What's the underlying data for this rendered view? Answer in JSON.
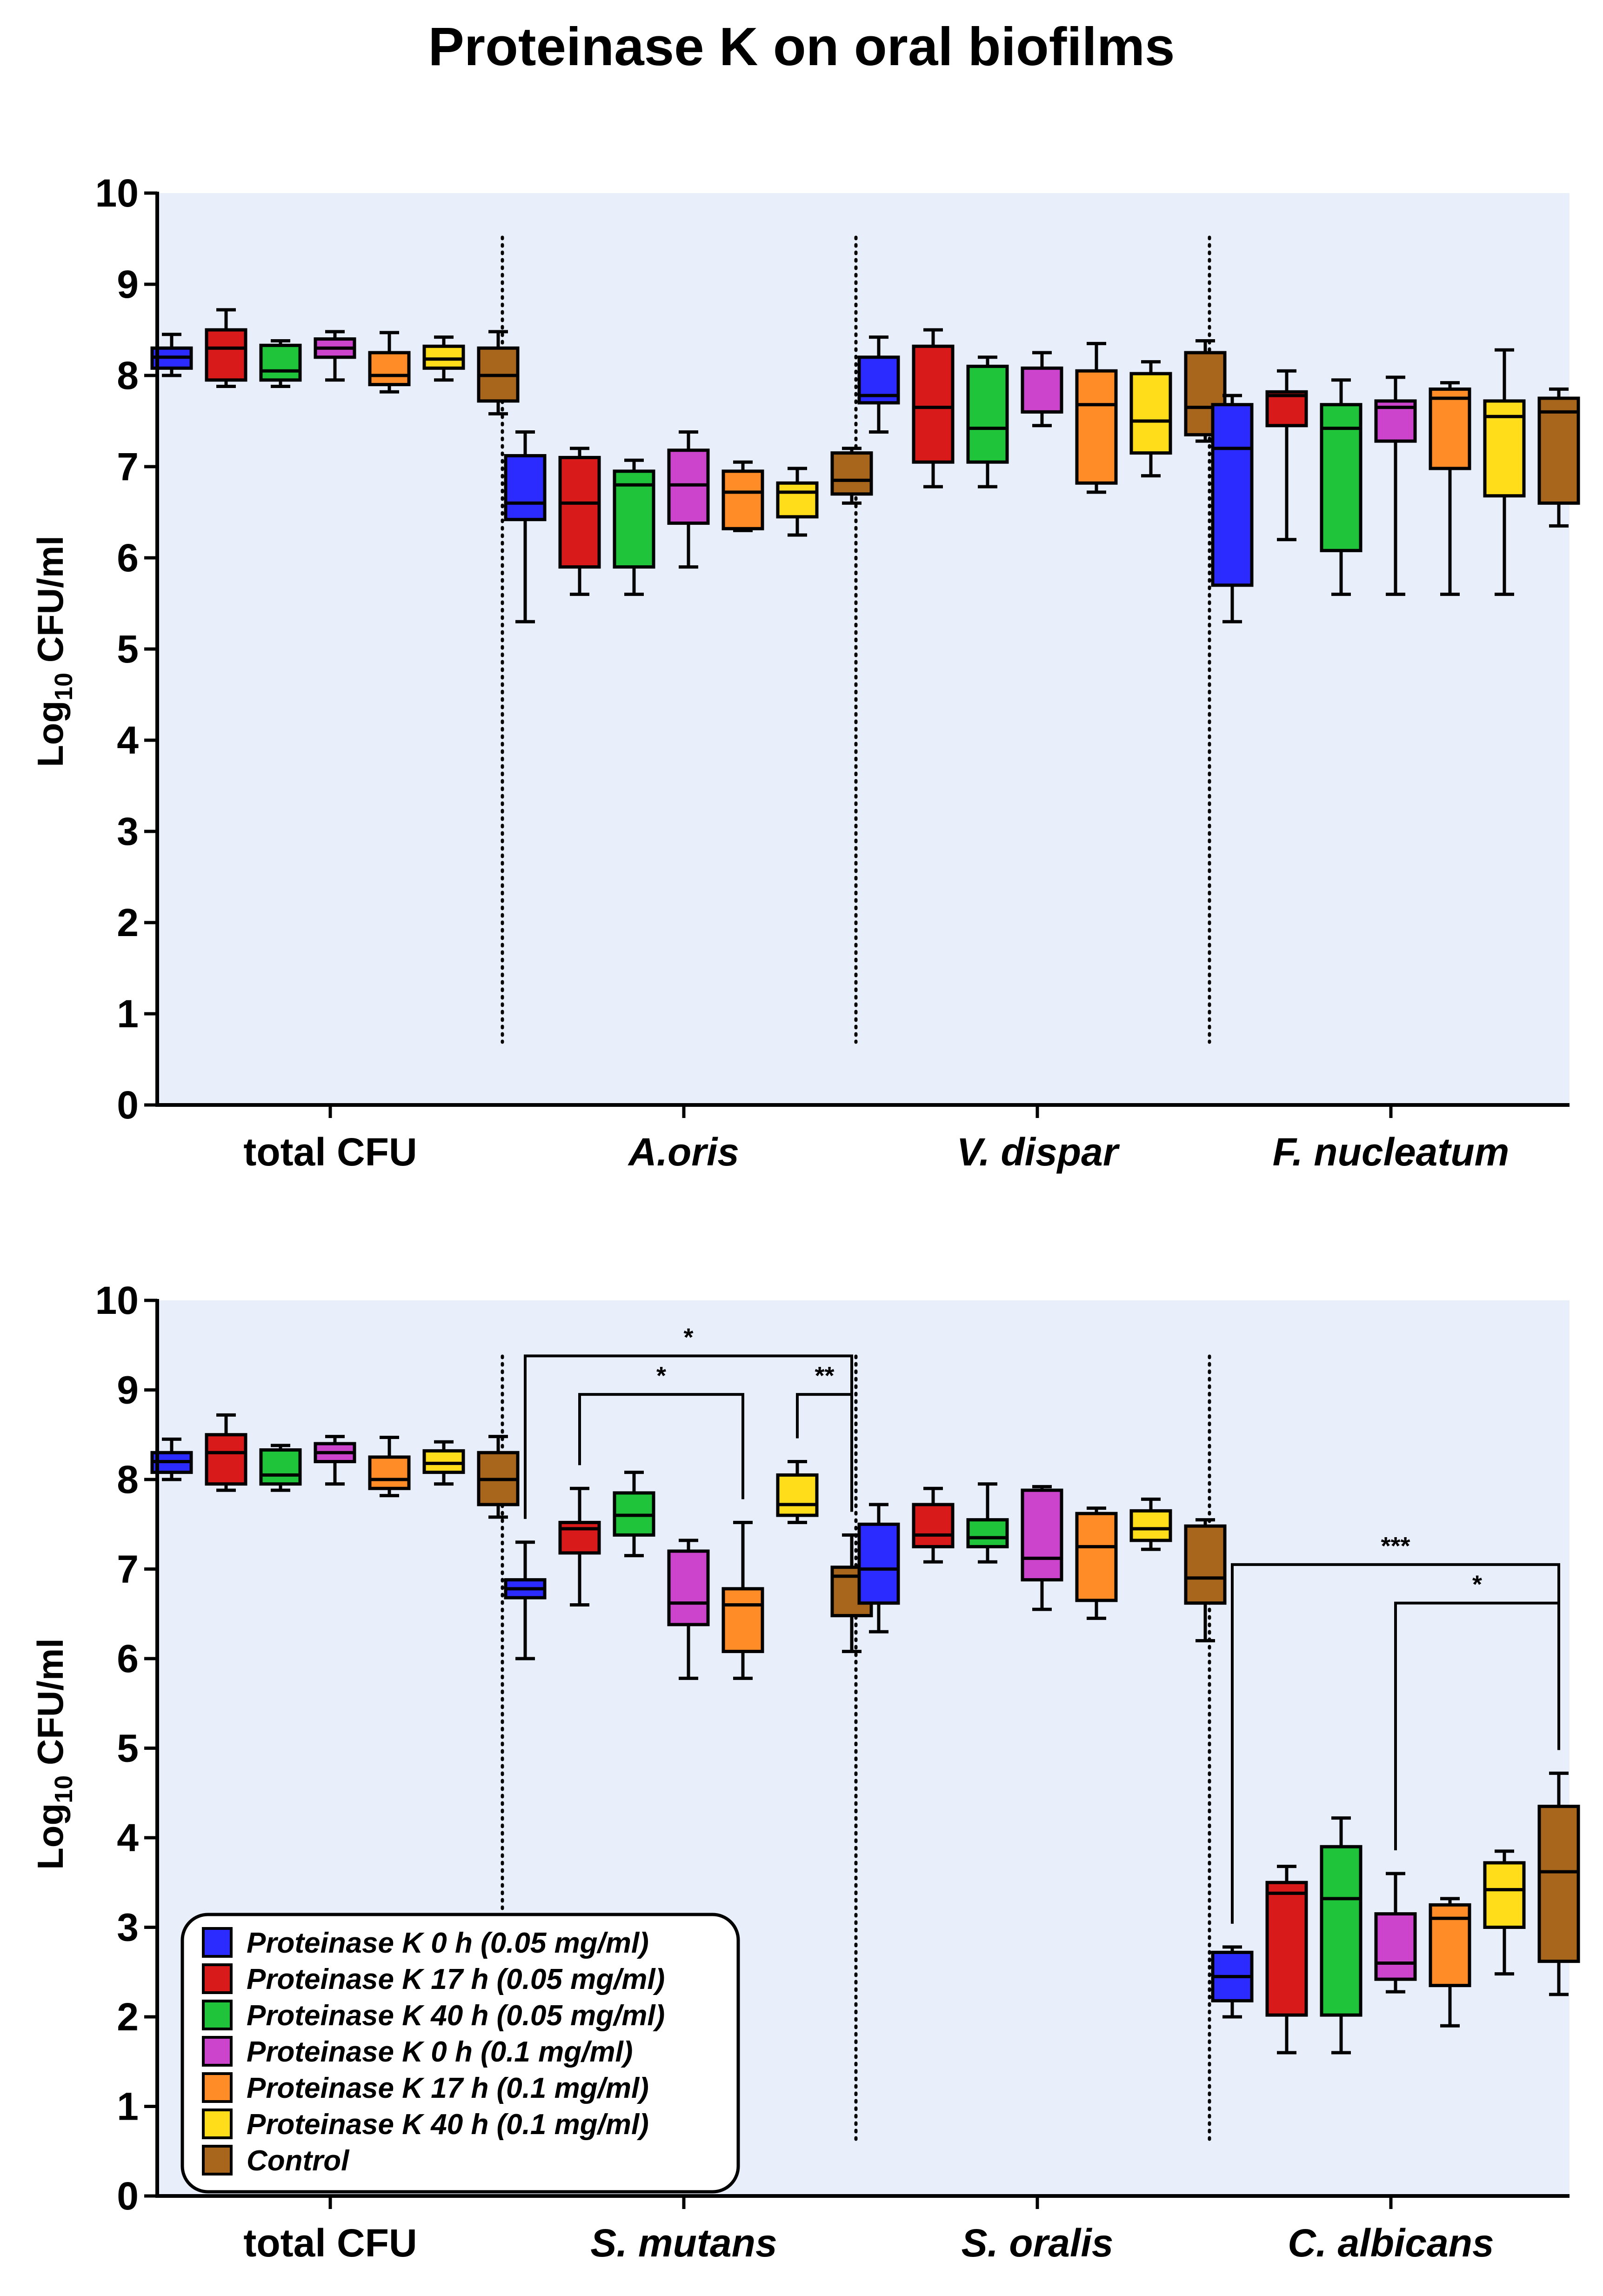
{
  "figure": {
    "title": "Proteinase K on oral biofilms"
  },
  "series": [
    {
      "name": "Proteinase K 0 h (0.05 mg/ml)",
      "color": "#2b2bff",
      "italic": true
    },
    {
      "name": "Proteinase K 17 h (0.05 mg/ml)",
      "color": "#d91a1a",
      "italic": true
    },
    {
      "name": "Proteinase K 40 h (0.05 mg/ml)",
      "color": "#1fc43a",
      "italic": true
    },
    {
      "name": "Proteinase K 0 h (0.1 mg/ml)",
      "color": "#cc44cc",
      "italic": true
    },
    {
      "name": "Proteinase K 17 h (0.1 mg/ml)",
      "color": "#ff8c26",
      "italic": true
    },
    {
      "name": "Proteinase K 40 h (0.1 mg/ml)",
      "color": "#ffdd1a",
      "italic": true
    },
    {
      "name": "Control",
      "color": "#a8661c",
      "italic": false
    }
  ],
  "chart_data": [
    {
      "type": "box",
      "ylabel_main": "Log",
      "ylabel_sub": "10",
      "ylabel_rest": " CFU/ml",
      "ylim": [
        0,
        10
      ],
      "yticks": [
        "0",
        "1",
        "2",
        "3",
        "4",
        "5",
        "6",
        "7",
        "8",
        "9",
        "10"
      ],
      "categories": [
        {
          "label": "total CFU",
          "italic": false
        },
        {
          "label": "A.oris",
          "italic": true
        },
        {
          "label": "V. dispar",
          "italic": true
        },
        {
          "label": "F. nucleatum",
          "italic": true
        }
      ],
      "boxes": [
        [
          [
            8.0,
            8.08,
            8.2,
            8.3,
            8.45
          ],
          [
            7.88,
            7.95,
            8.3,
            8.5,
            8.72
          ],
          [
            7.88,
            7.95,
            8.05,
            8.33,
            8.38
          ],
          [
            7.95,
            8.2,
            8.3,
            8.4,
            8.48
          ],
          [
            7.82,
            7.9,
            8.0,
            8.25,
            8.47
          ],
          [
            7.95,
            8.08,
            8.18,
            8.32,
            8.42
          ],
          [
            7.58,
            7.72,
            8.0,
            8.3,
            8.48
          ]
        ],
        [
          [
            5.3,
            6.42,
            6.6,
            7.12,
            7.38
          ],
          [
            5.6,
            5.9,
            6.6,
            7.1,
            7.2
          ],
          [
            5.6,
            5.9,
            6.8,
            6.95,
            7.07
          ],
          [
            5.9,
            6.38,
            6.8,
            7.18,
            7.38
          ],
          [
            6.3,
            6.32,
            6.72,
            6.95,
            7.05
          ],
          [
            6.25,
            6.45,
            6.72,
            6.82,
            6.98
          ],
          [
            6.6,
            6.7,
            6.85,
            7.15,
            7.2
          ]
        ],
        [
          [
            7.38,
            7.7,
            7.78,
            8.2,
            8.42
          ],
          [
            6.78,
            7.05,
            7.65,
            8.32,
            8.5
          ],
          [
            6.78,
            7.05,
            7.42,
            8.1,
            8.2
          ],
          [
            7.45,
            7.6,
            7.6,
            8.08,
            8.25
          ],
          [
            6.72,
            6.82,
            7.68,
            8.05,
            8.35
          ],
          [
            6.9,
            7.15,
            7.5,
            8.02,
            8.15
          ],
          [
            7.28,
            7.35,
            7.65,
            8.25,
            8.38
          ]
        ],
        [
          [
            5.3,
            5.7,
            7.2,
            7.68,
            7.78
          ],
          [
            6.2,
            7.45,
            7.78,
            7.82,
            8.05
          ],
          [
            5.6,
            6.08,
            7.42,
            7.68,
            7.95
          ],
          [
            5.6,
            7.28,
            7.65,
            7.72,
            7.98
          ],
          [
            5.6,
            6.98,
            7.75,
            7.85,
            7.92
          ],
          [
            5.6,
            6.68,
            7.55,
            7.72,
            8.28
          ],
          [
            6.35,
            6.6,
            7.6,
            7.75,
            7.85
          ]
        ]
      ],
      "annotations": []
    },
    {
      "type": "box",
      "ylabel_main": "Log",
      "ylabel_sub": "10",
      "ylabel_rest": " CFU/ml",
      "ylim": [
        0,
        10
      ],
      "yticks": [
        "0",
        "1",
        "2",
        "3",
        "4",
        "5",
        "6",
        "7",
        "8",
        "9",
        "10"
      ],
      "categories": [
        {
          "label": "total CFU",
          "italic": false
        },
        {
          "label": "S. mutans",
          "italic": true
        },
        {
          "label": "S. oralis",
          "italic": true
        },
        {
          "label": "C. albicans",
          "italic": true
        }
      ],
      "boxes": [
        [
          [
            8.0,
            8.08,
            8.2,
            8.3,
            8.45
          ],
          [
            7.88,
            7.95,
            8.3,
            8.5,
            8.72
          ],
          [
            7.88,
            7.95,
            8.05,
            8.33,
            8.38
          ],
          [
            7.95,
            8.2,
            8.3,
            8.4,
            8.48
          ],
          [
            7.82,
            7.9,
            8.0,
            8.25,
            8.47
          ],
          [
            7.95,
            8.08,
            8.18,
            8.32,
            8.42
          ],
          [
            7.58,
            7.72,
            8.0,
            8.3,
            8.48
          ]
        ],
        [
          [
            6.0,
            6.68,
            6.78,
            6.88,
            7.3
          ],
          [
            6.6,
            7.18,
            7.45,
            7.52,
            7.9
          ],
          [
            7.15,
            7.38,
            7.6,
            7.85,
            8.08
          ],
          [
            5.78,
            6.38,
            6.62,
            7.2,
            7.32
          ],
          [
            5.78,
            6.08,
            6.6,
            6.78,
            7.52
          ],
          [
            7.52,
            7.6,
            7.72,
            8.05,
            8.2
          ],
          [
            6.08,
            6.48,
            6.92,
            7.02,
            7.38
          ]
        ],
        [
          [
            6.3,
            6.62,
            7.0,
            7.5,
            7.72
          ],
          [
            7.08,
            7.25,
            7.38,
            7.72,
            7.9
          ],
          [
            7.08,
            7.25,
            7.35,
            7.55,
            7.95
          ],
          [
            6.55,
            6.88,
            7.12,
            7.88,
            7.92
          ],
          [
            6.45,
            6.65,
            7.25,
            7.62,
            7.68
          ],
          [
            7.22,
            7.32,
            7.45,
            7.65,
            7.78
          ],
          [
            6.2,
            6.62,
            6.9,
            7.48,
            7.55
          ]
        ],
        [
          [
            2.0,
            2.18,
            2.45,
            2.72,
            2.78
          ],
          [
            1.6,
            2.02,
            3.38,
            3.5,
            3.68
          ],
          [
            1.6,
            2.02,
            3.32,
            3.9,
            4.22
          ],
          [
            2.28,
            2.42,
            2.6,
            3.15,
            3.6
          ],
          [
            1.9,
            2.35,
            3.1,
            3.25,
            3.32
          ],
          [
            2.48,
            3.0,
            3.42,
            3.72,
            3.85
          ],
          [
            2.25,
            2.62,
            3.62,
            4.35,
            4.72
          ]
        ]
      ],
      "annotations": [
        {
          "cat": 1,
          "from": 0,
          "to": 6,
          "y": 9.38,
          "label": "*"
        },
        {
          "cat": 1,
          "from": 1,
          "to": 4,
          "y": 8.95,
          "label": "*"
        },
        {
          "cat": 1,
          "from": 5,
          "to": 6,
          "y": 8.95,
          "label": "**"
        },
        {
          "cat": 3,
          "from": 0,
          "to": 6,
          "y": 7.05,
          "label": "***"
        },
        {
          "cat": 3,
          "from": 3,
          "to": 6,
          "y": 6.62,
          "label": "*"
        }
      ]
    }
  ]
}
